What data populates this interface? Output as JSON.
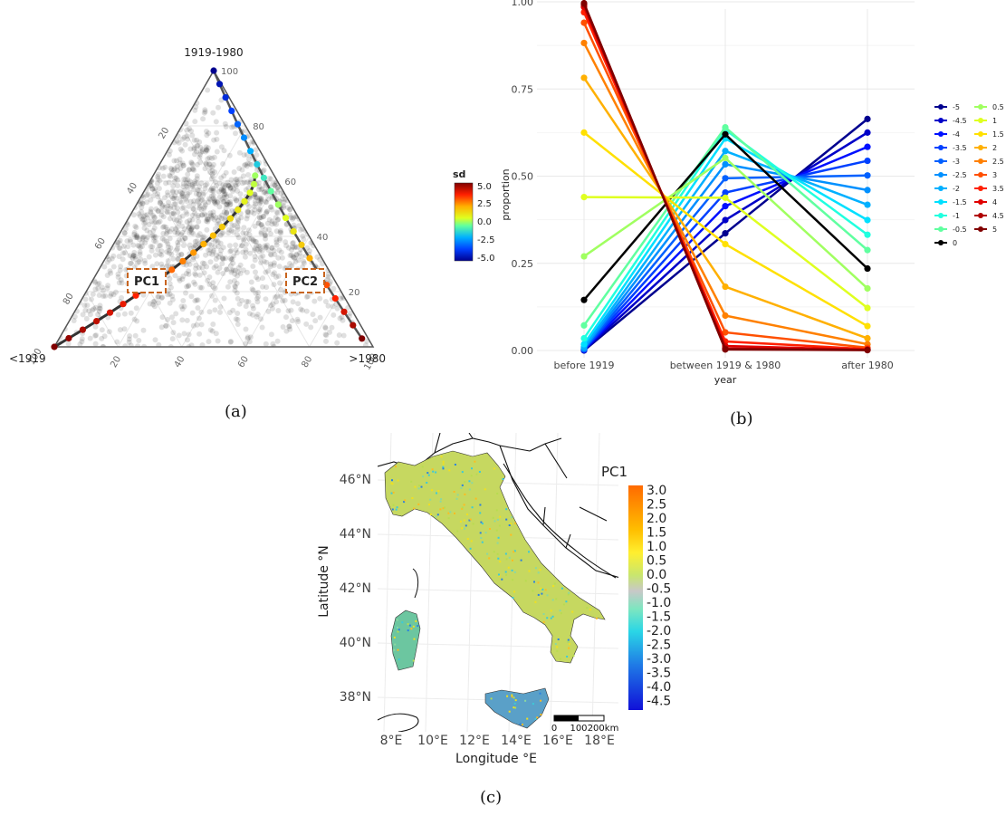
{
  "captions": {
    "a": "(a)",
    "b": "(b)",
    "c": "(c)"
  },
  "panel_a": {
    "axis_labels": {
      "top": "1919-1980",
      "left": "<1919",
      "right": ">1980"
    },
    "ticks_left": [
      "20",
      "40",
      "60",
      "80",
      "100"
    ],
    "ticks_right": [
      "100",
      "80",
      "60",
      "40",
      "20"
    ],
    "ticks_bottom": [
      "20",
      "40",
      "60",
      "80",
      "100"
    ],
    "pc_labels": [
      "PC1",
      "PC2"
    ],
    "legend": {
      "title": "sd",
      "ticks": [
        "5.0",
        "2.5",
        "0.0",
        "-2.5",
        "-5.0"
      ]
    },
    "colors": {
      "pc_box": "#c8641e",
      "curve": "#333333"
    }
  },
  "chart_data": [
    {
      "type": "line",
      "panel": "b",
      "title": "",
      "xlabel": "year",
      "ylabel": "proportion",
      "categories": [
        "before 1919",
        "between 1919 & 1980",
        "after 1980"
      ],
      "ylim": [
        0,
        1
      ],
      "yticks": [
        "0.00",
        "0.25",
        "0.50",
        "0.75",
        "1.00"
      ],
      "grid": true,
      "legend_position": "right",
      "series": [
        {
          "name": "-5",
          "color": "#00008f",
          "values": [
            0.0,
            0.336,
            0.664
          ]
        },
        {
          "name": "-4.5",
          "color": "#0000c8",
          "values": [
            0.001,
            0.374,
            0.625
          ]
        },
        {
          "name": "-4",
          "color": "#0010ff",
          "values": [
            0.002,
            0.414,
            0.584
          ]
        },
        {
          "name": "-3.5",
          "color": "#0040ff",
          "values": [
            0.003,
            0.453,
            0.544
          ]
        },
        {
          "name": "-3",
          "color": "#0060ff",
          "values": [
            0.004,
            0.494,
            0.502
          ]
        },
        {
          "name": "-2.5",
          "color": "#0090ff",
          "values": [
            0.006,
            0.534,
            0.46
          ]
        },
        {
          "name": "-2",
          "color": "#00b0ff",
          "values": [
            0.01,
            0.572,
            0.418
          ]
        },
        {
          "name": "-1.5",
          "color": "#00e0ff",
          "values": [
            0.018,
            0.608,
            0.374
          ]
        },
        {
          "name": "-1",
          "color": "#20ffdf",
          "values": [
            0.035,
            0.633,
            0.332
          ]
        },
        {
          "name": "-0.5",
          "color": "#60ffa0",
          "values": [
            0.072,
            0.64,
            0.288
          ]
        },
        {
          "name": "0",
          "color": "#000000",
          "values": [
            0.145,
            0.62,
            0.235
          ]
        },
        {
          "name": "0.5",
          "color": "#a0ff60",
          "values": [
            0.27,
            0.552,
            0.178
          ]
        },
        {
          "name": "1",
          "color": "#dfff20",
          "values": [
            0.44,
            0.438,
            0.122
          ]
        },
        {
          "name": "1.5",
          "color": "#ffe000",
          "values": [
            0.625,
            0.305,
            0.07
          ]
        },
        {
          "name": "2",
          "color": "#ffb000",
          "values": [
            0.782,
            0.183,
            0.035
          ]
        },
        {
          "name": "2.5",
          "color": "#ff8000",
          "values": [
            0.882,
            0.1,
            0.018
          ]
        },
        {
          "name": "3",
          "color": "#ff5000",
          "values": [
            0.94,
            0.052,
            0.008
          ]
        },
        {
          "name": "3.5",
          "color": "#ff2000",
          "values": [
            0.97,
            0.026,
            0.004
          ]
        },
        {
          "name": "4",
          "color": "#e00000",
          "values": [
            0.985,
            0.013,
            0.002
          ]
        },
        {
          "name": "4.5",
          "color": "#b00000",
          "values": [
            0.992,
            0.006,
            0.002
          ]
        },
        {
          "name": "5",
          "color": "#800000",
          "values": [
            0.996,
            0.003,
            0.001
          ]
        }
      ]
    },
    {
      "type": "heatmap",
      "panel": "c",
      "title": "",
      "xlabel": "Longitude °E",
      "ylabel": "Latitude °N",
      "xticks": [
        "8°E",
        "10°E",
        "12°E",
        "14°E",
        "16°E",
        "18°E"
      ],
      "yticks": [
        "46°N",
        "44°N",
        "42°N",
        "40°N",
        "38°N"
      ],
      "legend": {
        "title": "PC1",
        "ticks": [
          "3.0",
          "2.5",
          "2.0",
          "1.5",
          "1.0",
          "0.5",
          "0.0",
          "-0.5",
          "-1.0",
          "-1.5",
          "-2.0",
          "-2.5",
          "-3.0",
          "-3.5",
          "-4.0",
          "-4.5"
        ]
      },
      "scalebar": {
        "labels": [
          "0",
          "100",
          "200km"
        ]
      }
    }
  ]
}
